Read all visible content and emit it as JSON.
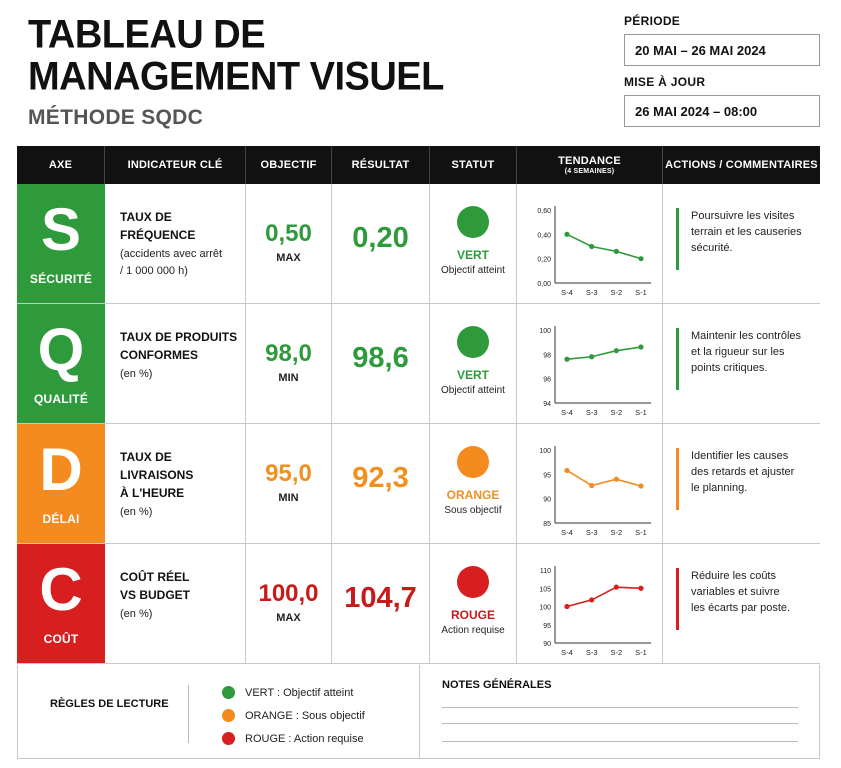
{
  "header": {
    "title_line1": "TABLEAU DE",
    "title_line2": "MANAGEMENT VISUEL",
    "subtitle": "MÉTHODE SQDC",
    "period_label": "PÉRIODE",
    "period_value": "20 MAI – 26 MAI 2024",
    "update_label": "MISE À JOUR",
    "update_value": "26 MAI 2024 – 08:00"
  },
  "columns": {
    "axe": "AXE",
    "indicateur": "INDICATEUR CLÉ",
    "objectif": "OBJECTIF",
    "resultat": "RÉSULTAT",
    "statut": "STATUT",
    "tendance": "TENDANCE",
    "tendance_sub": "(4 SEMAINES)",
    "actions": "ACTIONS / COMMENTAIRES"
  },
  "colors": {
    "green": "#2e9a3b",
    "orange": "#f58a1f",
    "red": "#d71f1f"
  },
  "rows": [
    {
      "letter": "S",
      "axe": "SÉCURITÉ",
      "color": "#2e9a3b",
      "value_color": "#2e9a3b",
      "indicator": "TAUX DE\nFRÉQUENCE",
      "note": "(accidents avec arrêt\n/ 1 000 000 h)",
      "objective": "0,50",
      "objective_unit": "MAX",
      "result": "0,20",
      "status": "VERT",
      "status_desc": "Objectif atteint",
      "action": "Poursuivre les visites\nterrain et les causeries\nsécurité."
    },
    {
      "letter": "Q",
      "axe": "QUALITÉ",
      "color": "#2e9a3b",
      "value_color": "#2e9a3b",
      "indicator": "TAUX DE PRODUITS\nCONFORMES",
      "note": "(en %)",
      "objective": "98,0",
      "objective_unit": "MIN",
      "result": "98,6",
      "status": "VERT",
      "status_desc": "Objectif atteint",
      "action": "Maintenir les contrôles\net la rigueur sur les\npoints critiques."
    },
    {
      "letter": "D",
      "axe": "DÉLAI",
      "color": "#f58a1f",
      "value_color": "#f0901e",
      "indicator": "TAUX DE LIVRAISONS\nÀ L'HEURE",
      "note": "(en %)",
      "objective": "95,0",
      "objective_unit": "MIN",
      "result": "92,3",
      "status": "ORANGE",
      "status_desc": "Sous objectif",
      "action": "Identifier les causes\ndes retards et ajuster\nle planning."
    },
    {
      "letter": "C",
      "axe": "COÛT",
      "color": "#d71f1f",
      "value_color": "#c81a1a",
      "indicator": "COÛT RÉEL\nVS BUDGET",
      "note": "(en %)",
      "objective": "100,0",
      "objective_unit": "MAX",
      "result": "104,7",
      "status": "ROUGE",
      "status_desc": "Action requise",
      "action": "Réduire les coûts\nvariables et suivre\nles écarts par poste."
    }
  ],
  "chart_data": [
    {
      "type": "line",
      "x": [
        "S-4",
        "S-3",
        "S-2",
        "S-1"
      ],
      "values": [
        0.4,
        0.3,
        0.26,
        0.2
      ],
      "ylim": [
        0,
        0.6
      ],
      "yticks": [
        "0,60",
        "0,40",
        "0,20",
        "0,00"
      ],
      "color": "#2e9a3b"
    },
    {
      "type": "line",
      "x": [
        "S-4",
        "S-3",
        "S-2",
        "S-1"
      ],
      "values": [
        97.6,
        97.8,
        98.3,
        98.6
      ],
      "ylim": [
        94,
        100
      ],
      "yticks": [
        "100",
        "98",
        "96",
        "94"
      ],
      "color": "#2e9a3b"
    },
    {
      "type": "line",
      "x": [
        "S-4",
        "S-3",
        "S-2",
        "S-1"
      ],
      "values": [
        95.8,
        92.7,
        94.0,
        92.6
      ],
      "ylim": [
        85,
        100
      ],
      "yticks": [
        "100",
        "95",
        "90",
        "85"
      ],
      "color": "#f58a1f"
    },
    {
      "type": "line",
      "x": [
        "S-4",
        "S-3",
        "S-2",
        "S-1"
      ],
      "values": [
        100.0,
        101.8,
        105.3,
        105.0
      ],
      "ylim": [
        90,
        110
      ],
      "yticks": [
        "110",
        "105",
        "100",
        "95",
        "90"
      ],
      "color": "#d71f1f"
    }
  ],
  "footer": {
    "rules_title": "RÈGLES DE LECTURE",
    "legend": [
      {
        "label": "VERT : Objectif atteint",
        "color": "#2e9a3b"
      },
      {
        "label": "ORANGE : Sous objectif",
        "color": "#f58a1f"
      },
      {
        "label": "ROUGE : Action requise",
        "color": "#d71f1f"
      }
    ],
    "notes_title": "NOTES GÉNÉRALES"
  }
}
